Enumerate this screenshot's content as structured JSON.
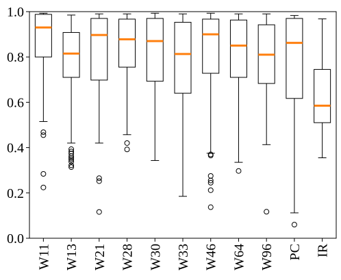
{
  "chart_data": {
    "type": "box",
    "title": "",
    "xlabel": "",
    "ylabel": "",
    "ylim": [
      0.0,
      1.0
    ],
    "yticks": [
      0.0,
      0.2,
      0.4,
      0.6,
      0.8,
      1.0
    ],
    "ytick_labels": [
      "0.0",
      "0.2",
      "0.4",
      "0.6",
      "0.8",
      "1.0"
    ],
    "grid": false,
    "legend": "none",
    "colors": {
      "box": "#000000",
      "median": "#ff7f0e",
      "outlier": "#000000"
    },
    "categories": [
      "W11",
      "W13",
      "W21",
      "W28",
      "W30",
      "W33",
      "W46",
      "W64",
      "W96",
      "PC",
      "IR"
    ],
    "boxes": [
      {
        "whisker_low": 0.515,
        "q1": 0.8,
        "median": 0.93,
        "q3": 0.988,
        "whisker_high": 0.993,
        "outliers": [
          0.468,
          0.455,
          0.284,
          0.224
        ]
      },
      {
        "whisker_low": 0.42,
        "q1": 0.71,
        "median": 0.815,
        "q3": 0.908,
        "whisker_high": 0.985,
        "outliers": [
          0.393,
          0.383,
          0.374,
          0.362,
          0.354,
          0.347,
          0.338,
          0.322,
          0.314
        ]
      },
      {
        "whisker_low": 0.42,
        "q1": 0.698,
        "median": 0.897,
        "q3": 0.97,
        "whisker_high": 0.99,
        "outliers": [
          0.265,
          0.252,
          0.116
        ]
      },
      {
        "whisker_low": 0.457,
        "q1": 0.755,
        "median": 0.878,
        "q3": 0.967,
        "whisker_high": 0.99,
        "outliers": [
          0.42,
          0.392
        ]
      },
      {
        "whisker_low": 0.343,
        "q1": 0.693,
        "median": 0.87,
        "q3": 0.97,
        "whisker_high": 0.993,
        "outliers": []
      },
      {
        "whisker_low": 0.185,
        "q1": 0.64,
        "median": 0.813,
        "q3": 0.953,
        "whisker_high": 0.99,
        "outliers": []
      },
      {
        "whisker_low": 0.375,
        "q1": 0.728,
        "median": 0.9,
        "q3": 0.967,
        "whisker_high": 0.993,
        "outliers": [
          0.37,
          0.365,
          0.275,
          0.255,
          0.245,
          0.212,
          0.137
        ]
      },
      {
        "whisker_low": 0.335,
        "q1": 0.71,
        "median": 0.85,
        "q3": 0.963,
        "whisker_high": 0.99,
        "outliers": [
          0.297
        ]
      },
      {
        "whisker_low": 0.413,
        "q1": 0.683,
        "median": 0.81,
        "q3": 0.942,
        "whisker_high": 0.99,
        "outliers": [
          0.117
        ]
      },
      {
        "whisker_low": 0.112,
        "q1": 0.617,
        "median": 0.862,
        "q3": 0.97,
        "whisker_high": 0.983,
        "outliers": [
          0.06
        ]
      },
      {
        "whisker_low": 0.355,
        "q1": 0.51,
        "median": 0.585,
        "q3": 0.745,
        "whisker_high": 0.968,
        "outliers": []
      }
    ]
  }
}
